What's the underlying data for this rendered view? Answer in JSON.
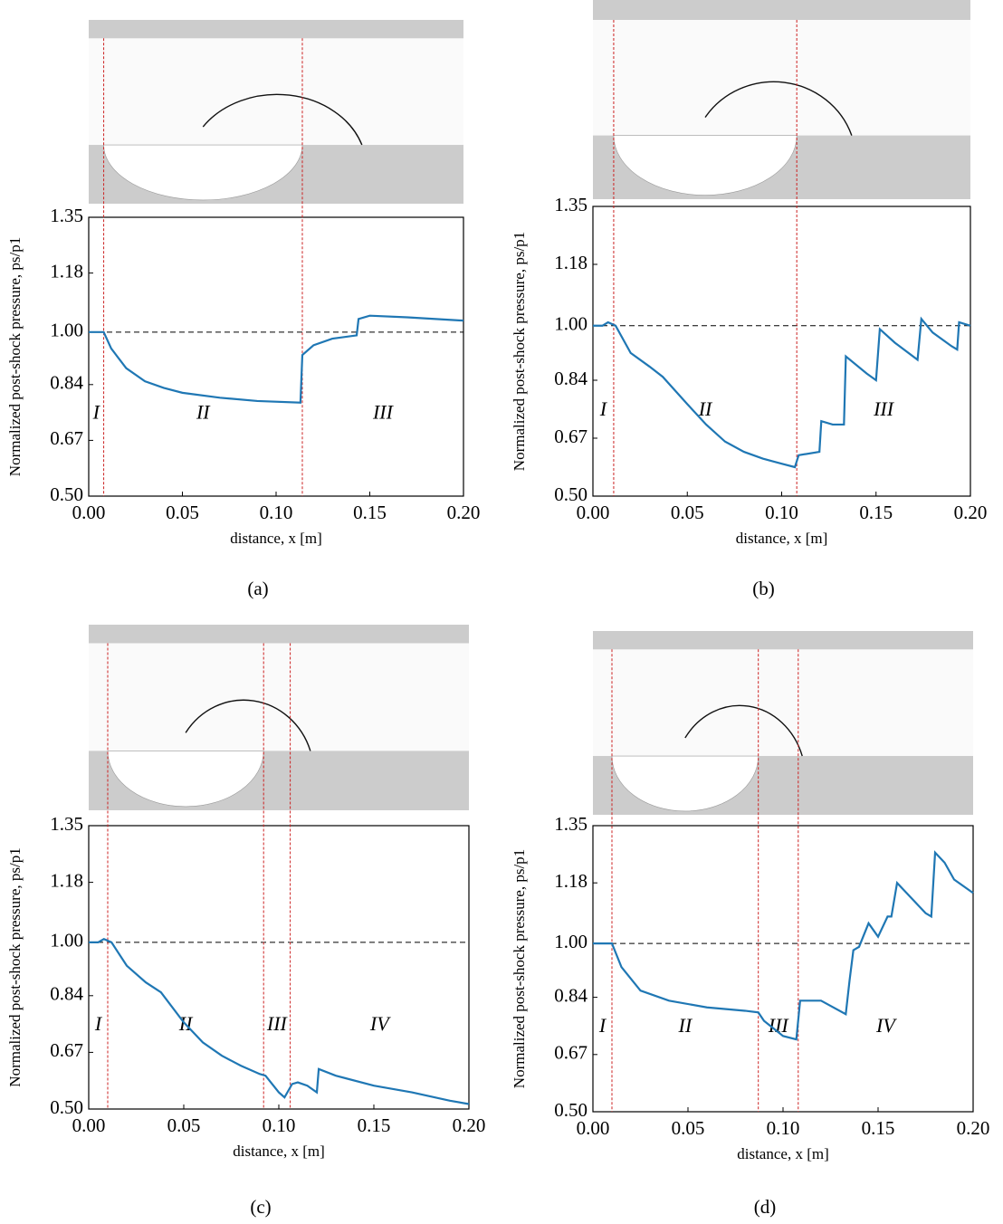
{
  "chart_data": [
    {
      "type": "line",
      "caption": "(a)",
      "xlabel": "distance, x [m]",
      "ylabel": "Normalized post-shock pressure, ps/p1",
      "xlim": [
        0,
        0.2
      ],
      "ylim": [
        0.5,
        1.35
      ],
      "xticks": [
        {
          "value": 0,
          "label": "0.00"
        },
        0.05,
        {
          "value": 0.1,
          "label": "0.10"
        },
        0.15,
        {
          "value": 0.2,
          "label": "0.20"
        }
      ],
      "yticks": [
        {
          "value": 0.5,
          "label": "0.50"
        },
        0.67,
        0.84,
        {
          "value": 1.0,
          "label": "1.00"
        },
        1.18,
        1.35
      ],
      "color": "#1f77b4",
      "hline": 1.0,
      "vline_color": "#cc2222",
      "vlines": [
        0.008,
        0.114
      ],
      "regions": [
        "I",
        "II",
        "III"
      ],
      "x": [
        0,
        0.008,
        0.012,
        0.02,
        0.03,
        0.04,
        0.05,
        0.07,
        0.09,
        0.113,
        0.114,
        0.12,
        0.13,
        0.143,
        0.144,
        0.15,
        0.17,
        0.2
      ],
      "values": [
        1.0,
        1.0,
        0.95,
        0.89,
        0.85,
        0.83,
        0.815,
        0.8,
        0.79,
        0.785,
        0.93,
        0.96,
        0.98,
        0.99,
        1.04,
        1.05,
        1.045,
        1.035
      ]
    },
    {
      "type": "line",
      "caption": "(b)",
      "xlabel": "distance, x [m]",
      "ylabel": "Normalized post-shock pressure, ps/p1",
      "xlim": [
        0,
        0.2
      ],
      "ylim": [
        0.5,
        1.35
      ],
      "xticks": [
        {
          "value": 0,
          "label": "0.00"
        },
        0.05,
        {
          "value": 0.1,
          "label": "0.10"
        },
        0.15,
        {
          "value": 0.2,
          "label": "0.20"
        }
      ],
      "yticks": [
        {
          "value": 0.5,
          "label": "0.50"
        },
        0.67,
        0.84,
        {
          "value": 1.0,
          "label": "1.00"
        },
        1.18,
        1.35
      ],
      "color": "#1f77b4",
      "hline": 1.0,
      "vline_color": "#cc2222",
      "vlines": [
        0.011,
        0.108
      ],
      "regions": [
        "I",
        "II",
        "III"
      ],
      "x": [
        0,
        0.005,
        0.008,
        0.012,
        0.02,
        0.03,
        0.037,
        0.05,
        0.06,
        0.07,
        0.08,
        0.09,
        0.1,
        0.107,
        0.109,
        0.12,
        0.121,
        0.127,
        0.133,
        0.134,
        0.145,
        0.15,
        0.152,
        0.16,
        0.172,
        0.174,
        0.18,
        0.19,
        0.193,
        0.194,
        0.2
      ],
      "values": [
        1.0,
        1.0,
        1.01,
        1.0,
        0.92,
        0.88,
        0.85,
        0.77,
        0.71,
        0.66,
        0.63,
        0.61,
        0.595,
        0.585,
        0.62,
        0.63,
        0.72,
        0.71,
        0.71,
        0.91,
        0.86,
        0.84,
        0.99,
        0.95,
        0.9,
        1.02,
        0.98,
        0.94,
        0.93,
        1.01,
        1.0
      ]
    },
    {
      "type": "line",
      "caption": "(c)",
      "xlabel": "distance, x [m]",
      "ylabel": "Normalized post-shock pressure, ps/p1",
      "xlim": [
        0,
        0.2
      ],
      "ylim": [
        0.5,
        1.35
      ],
      "xticks": [
        {
          "value": 0,
          "label": "0.00"
        },
        0.05,
        {
          "value": 0.1,
          "label": "0.10"
        },
        0.15,
        {
          "value": 0.2,
          "label": "0.20"
        }
      ],
      "yticks": [
        {
          "value": 0.5,
          "label": "0.50"
        },
        0.67,
        0.84,
        {
          "value": 1.0,
          "label": "1.00"
        },
        1.18,
        1.35
      ],
      "color": "#1f77b4",
      "hline": 1.0,
      "vline_color": "#cc2222",
      "vlines": [
        0.01,
        0.092,
        0.106
      ],
      "regions": [
        "I",
        "II",
        "III",
        "IV"
      ],
      "x": [
        0,
        0.005,
        0.008,
        0.012,
        0.02,
        0.03,
        0.038,
        0.05,
        0.06,
        0.07,
        0.08,
        0.09,
        0.093,
        0.1,
        0.103,
        0.107,
        0.11,
        0.115,
        0.12,
        0.121,
        0.13,
        0.15,
        0.17,
        0.19,
        0.2
      ],
      "values": [
        1.0,
        1.0,
        1.01,
        1.0,
        0.93,
        0.88,
        0.85,
        0.76,
        0.7,
        0.66,
        0.63,
        0.605,
        0.6,
        0.55,
        0.535,
        0.575,
        0.58,
        0.57,
        0.55,
        0.62,
        0.6,
        0.57,
        0.55,
        0.525,
        0.515
      ]
    },
    {
      "type": "line",
      "caption": "(d)",
      "xlabel": "distance, x [m]",
      "ylabel": "Normalized post-shock pressure, ps/p1",
      "xlim": [
        0,
        0.2
      ],
      "ylim": [
        0.5,
        1.35
      ],
      "xticks": [
        {
          "value": 0,
          "label": "0.00"
        },
        0.05,
        {
          "value": 0.1,
          "label": "0.10"
        },
        0.15,
        {
          "value": 0.2,
          "label": "0.20"
        }
      ],
      "yticks": [
        {
          "value": 0.5,
          "label": "0.50"
        },
        0.67,
        0.84,
        {
          "value": 1.0,
          "label": "1.00"
        },
        1.18,
        1.35
      ],
      "color": "#1f77b4",
      "hline": 1.0,
      "vline_color": "#cc2222",
      "vlines": [
        0.01,
        0.087,
        0.108
      ],
      "regions": [
        "I",
        "II",
        "III",
        "IV"
      ],
      "x": [
        0,
        0.01,
        0.015,
        0.025,
        0.04,
        0.06,
        0.08,
        0.087,
        0.09,
        0.1,
        0.107,
        0.109,
        0.12,
        0.133,
        0.135,
        0.137,
        0.14,
        0.145,
        0.15,
        0.155,
        0.157,
        0.16,
        0.17,
        0.175,
        0.178,
        0.18,
        0.185,
        0.19,
        0.2
      ],
      "values": [
        1.0,
        1.0,
        0.93,
        0.86,
        0.83,
        0.81,
        0.8,
        0.795,
        0.77,
        0.725,
        0.715,
        0.83,
        0.83,
        0.79,
        0.89,
        0.98,
        0.99,
        1.06,
        1.02,
        1.08,
        1.08,
        1.18,
        1.12,
        1.09,
        1.08,
        1.27,
        1.24,
        1.19,
        1.15
      ]
    }
  ]
}
